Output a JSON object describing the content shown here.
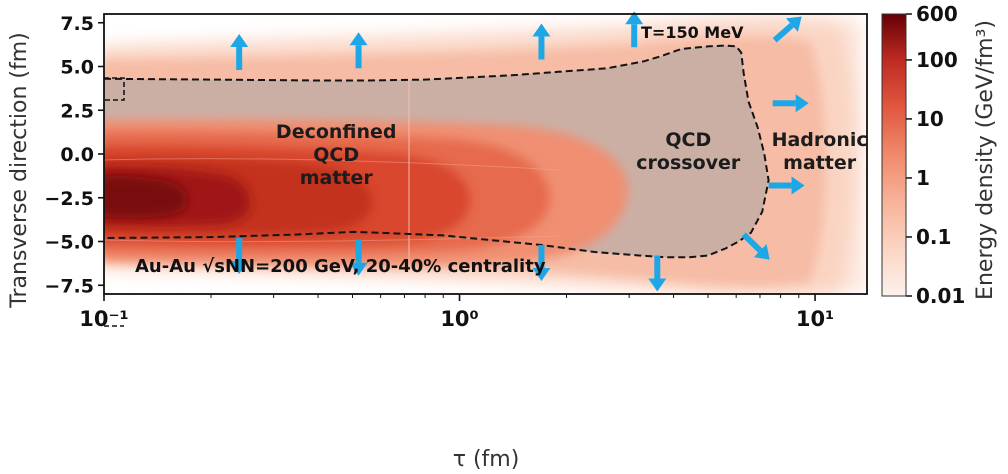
{
  "chart_data": {
    "type": "heatmap",
    "title": "",
    "xlabel": "τ (fm)",
    "ylabel": "Transverse direction (fm)",
    "x_scale": "log",
    "xlim": [
      0.1,
      14
    ],
    "ylim": [
      -8,
      8
    ],
    "x_ticks": [
      0.1,
      1,
      10
    ],
    "x_tick_labels": [
      "10⁻¹",
      "10⁰",
      "10¹"
    ],
    "y_ticks": [
      7.5,
      5.0,
      2.5,
      0.0,
      -2.5,
      -5.0,
      -7.5
    ],
    "y_tick_labels": [
      "7.5",
      "5.0",
      "2.5",
      "0.0",
      "−2.5",
      "−5.0",
      "−7.5"
    ],
    "colorbar": {
      "label": "Energy density (GeV/fm³)",
      "scale": "log",
      "ticks": [
        600,
        100,
        10,
        1,
        0.1,
        0.01
      ],
      "tick_labels": [
        "600",
        "100",
        "10",
        "1",
        "0.1",
        "0.01"
      ],
      "colors": [
        "#fdf1ec",
        "#fbd6c6",
        "#f8b9a2",
        "#f49a7f",
        "#ec7a5c",
        "#e05a41",
        "#cd3a2c",
        "#b41f1e",
        "#8e0d12",
        "#650006"
      ]
    },
    "isotherm": {
      "label": "T=150 MeV",
      "tau": [
        0.1,
        0.2,
        0.4,
        0.55,
        0.8,
        1.0,
        1.4,
        1.9,
        2.6,
        3.3,
        3.7,
        4.2,
        5.0,
        5.6,
        6.0,
        6.2,
        6.3,
        6.5,
        6.9,
        7.2,
        7.4,
        7.1,
        6.6,
        6.1,
        5.6,
        5.0,
        4.4,
        3.8,
        3.2,
        2.4,
        1.7,
        1.2,
        0.9,
        0.6,
        0.5,
        0.35,
        0.2,
        0.1
      ],
      "x_fm": [
        4.3,
        4.25,
        4.2,
        4.2,
        4.25,
        4.35,
        4.5,
        4.7,
        4.9,
        5.3,
        5.6,
        6.0,
        6.15,
        6.2,
        6.15,
        5.8,
        4.6,
        3.0,
        1.5,
        0.0,
        -1.5,
        -3.3,
        -4.5,
        -5.0,
        -5.4,
        -5.8,
        -5.9,
        -5.9,
        -5.8,
        -5.6,
        -5.2,
        -4.9,
        -4.65,
        -4.5,
        -4.45,
        -4.6,
        -4.75,
        -4.8
      ]
    },
    "flow_arrows": [
      {
        "tau": 0.24,
        "x_fm": 4.8,
        "direction": "up"
      },
      {
        "tau": 0.52,
        "x_fm": 4.9,
        "direction": "up"
      },
      {
        "tau": 1.7,
        "x_fm": 5.4,
        "direction": "up"
      },
      {
        "tau": 3.1,
        "x_fm": 6.1,
        "direction": "up"
      },
      {
        "tau": 7.7,
        "x_fm": 6.5,
        "direction": "up-right"
      },
      {
        "tau": 7.6,
        "x_fm": 2.9,
        "direction": "right"
      },
      {
        "tau": 7.4,
        "x_fm": -1.8,
        "direction": "right"
      },
      {
        "tau": 6.3,
        "x_fm": -4.6,
        "direction": "down-right"
      },
      {
        "tau": 3.6,
        "x_fm": -5.8,
        "direction": "down"
      },
      {
        "tau": 1.7,
        "x_fm": -5.2,
        "direction": "down"
      },
      {
        "tau": 0.52,
        "x_fm": -4.9,
        "direction": "down"
      },
      {
        "tau": 0.24,
        "x_fm": -4.8,
        "direction": "down"
      }
    ],
    "regions": [
      {
        "lines": [
          "Deconfined",
          "QCD",
          "matter"
        ],
        "tau": 0.45,
        "x_fm": 0.0
      },
      {
        "lines": [
          "QCD",
          "crossover"
        ],
        "tau": 4.4,
        "x_fm": 0.2
      },
      {
        "lines": [
          "Hadronic",
          "matter"
        ],
        "tau": 10.3,
        "x_fm": 0.2
      }
    ],
    "annotation": "Au-Au √sNN=200 GeV, 20-40% centrality",
    "grid": false
  }
}
